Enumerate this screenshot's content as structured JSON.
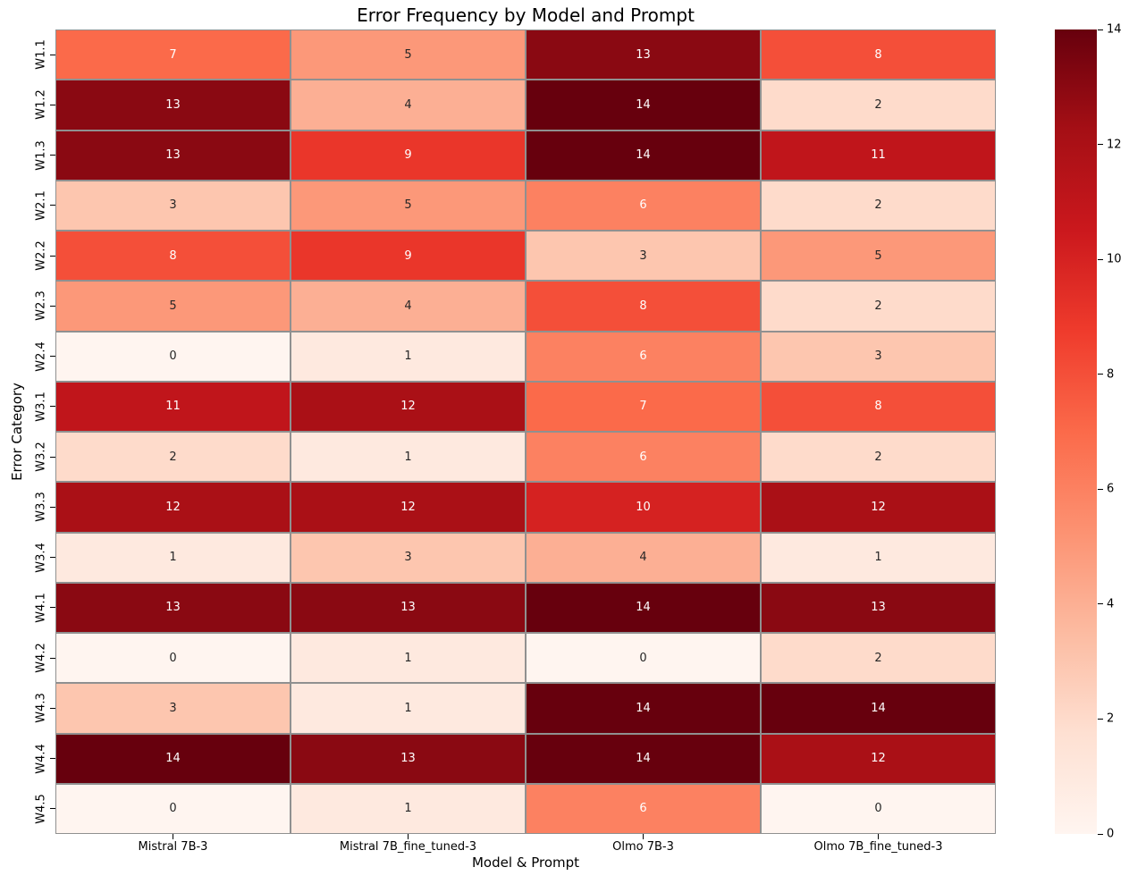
{
  "chart_data": {
    "type": "heatmap",
    "title": "Error Frequency by Model and Prompt",
    "xlabel": "Model & Prompt",
    "ylabel": "Error Category",
    "columns": [
      "Mistral 7B-3",
      "Mistral 7B_fine_tuned-3",
      "Olmo 7B-3",
      "Olmo 7B_fine_tuned-3"
    ],
    "rows": [
      "W1.1",
      "W1.2",
      "W1.3",
      "W2.1",
      "W2.2",
      "W2.3",
      "W2.4",
      "W3.1",
      "W3.2",
      "W3.3",
      "W3.4",
      "W4.1",
      "W4.2",
      "W4.3",
      "W4.4",
      "W4.5"
    ],
    "values": [
      [
        7,
        5,
        13,
        8
      ],
      [
        13,
        4,
        14,
        2
      ],
      [
        13,
        9,
        14,
        11
      ],
      [
        3,
        5,
        6,
        2
      ],
      [
        8,
        9,
        3,
        5
      ],
      [
        5,
        4,
        8,
        2
      ],
      [
        0,
        1,
        6,
        3
      ],
      [
        11,
        12,
        7,
        8
      ],
      [
        2,
        1,
        6,
        2
      ],
      [
        12,
        12,
        10,
        12
      ],
      [
        1,
        3,
        4,
        1
      ],
      [
        13,
        13,
        14,
        13
      ],
      [
        0,
        1,
        0,
        2
      ],
      [
        3,
        1,
        14,
        14
      ],
      [
        14,
        13,
        14,
        12
      ],
      [
        0,
        1,
        6,
        0
      ]
    ],
    "vmin": 0,
    "vmax": 14,
    "annotated": true,
    "grid": "cell-borders",
    "grid_line_color": "#909090",
    "annot_dark_color": "#262626",
    "annot_light_color": "#ffffff",
    "colormap_name": "Reds",
    "colormap_stops": [
      "#fff5f0",
      "#fee0d2",
      "#fcbba1",
      "#fc9272",
      "#fb6a4a",
      "#ef3b2c",
      "#cb181d",
      "#a50f15",
      "#67000d"
    ],
    "colorbar": {
      "position": "right",
      "ticks": [
        0,
        2,
        4,
        6,
        8,
        10,
        12,
        14
      ]
    }
  }
}
